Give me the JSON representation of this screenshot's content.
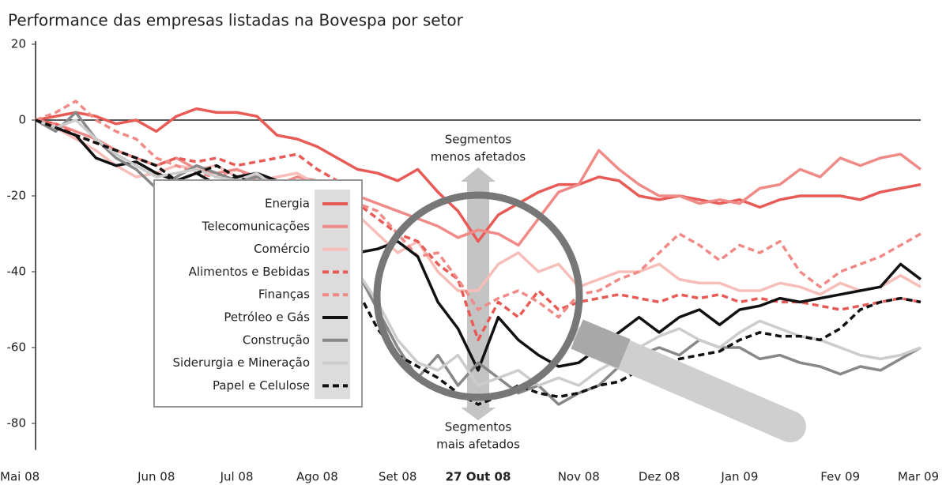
{
  "chart_data": {
    "type": "line",
    "title": "Performance das empresas listadas na Bovespa por setor",
    "categories": [
      "Mai 08",
      null,
      null,
      null,
      null,
      null,
      "Jun 08",
      null,
      null,
      null,
      "Jul 08",
      null,
      null,
      null,
      "Ago 08",
      null,
      null,
      null,
      "Set 08",
      null,
      null,
      null,
      "27 Out 08",
      null,
      null,
      null,
      null,
      "Nov 08",
      null,
      null,
      null,
      "Dez 08",
      null,
      null,
      null,
      "Jan 09",
      null,
      null,
      null,
      null,
      "Fev 09",
      null,
      null,
      null,
      "Mar 09"
    ],
    "marker_category": "27 Out 08",
    "ylim": [
      -87,
      20
    ],
    "yticks": [
      20,
      0,
      -20,
      -40,
      -60,
      -80
    ],
    "zero_line": true,
    "annotations": [
      [
        "Segmentos",
        "menos afetados"
      ],
      [
        "Segmentos",
        "mais afetados"
      ]
    ],
    "series": [
      {
        "name": "Energia",
        "color": "#e85a55",
        "dashed": false,
        "values": [
          0,
          1,
          2,
          1,
          -1,
          0,
          -3,
          1,
          3,
          2,
          2,
          1,
          -4,
          -5,
          -7,
          -10,
          -13,
          -14,
          -16,
          -13,
          -19,
          -24,
          -32,
          -25,
          -22,
          -19,
          -17,
          -17,
          -15,
          -16,
          -20,
          -21,
          -20,
          -21,
          -22,
          -21,
          -23,
          -21,
          -20,
          -20,
          -20,
          -21,
          -19,
          -18,
          -17
        ]
      },
      {
        "name": "Telecomunicações",
        "color": "#ef8a86",
        "dashed": false,
        "values": [
          0,
          -1,
          -3,
          -5,
          -8,
          -10,
          -12,
          -10,
          -13,
          -14,
          -13,
          -15,
          -17,
          -15,
          -16,
          -18,
          -20,
          -22,
          -24,
          -26,
          -28,
          -31,
          -29,
          -30,
          -33,
          -26,
          -19,
          -17,
          -8,
          -13,
          -17,
          -20,
          -20,
          -22,
          -21,
          -22,
          -18,
          -17,
          -13,
          -15,
          -10,
          -12,
          -10,
          -9,
          -13
        ]
      },
      {
        "name": "Comércio",
        "color": "#f7bdb9",
        "dashed": false,
        "values": [
          0,
          -2,
          -5,
          -8,
          -12,
          -15,
          -14,
          -12,
          -13,
          -12,
          -15,
          -16,
          -15,
          -14,
          -17,
          -20,
          -25,
          -30,
          -35,
          -32,
          -40,
          -45,
          -45,
          -38,
          -35,
          -40,
          -38,
          -44,
          -42,
          -40,
          -40,
          -38,
          -42,
          -43,
          -43,
          -45,
          -45,
          -43,
          -44,
          -46,
          -43,
          -45,
          -44,
          -41,
          -44
        ]
      },
      {
        "name": "Alimentos e Bebidas",
        "color": "#e85a55",
        "dashed": true,
        "values": [
          0,
          -1,
          -4,
          -6,
          -8,
          -10,
          -12,
          -10,
          -11,
          -10,
          -12,
          -11,
          -10,
          -9,
          -13,
          -16,
          -22,
          -26,
          -30,
          -32,
          -38,
          -42,
          -58,
          -48,
          -52,
          -45,
          -50,
          -48,
          -47,
          -46,
          -47,
          -48,
          -46,
          -47,
          -46,
          -48,
          -47,
          -48,
          -48,
          -49,
          -50,
          -49,
          -48,
          -47,
          -48
        ]
      },
      {
        "name": "Finanças",
        "color": "#ef8a86",
        "dashed": true,
        "values": [
          0,
          2,
          5,
          0,
          -3,
          -5,
          -10,
          -12,
          -14,
          -15,
          -13,
          -16,
          -18,
          -20,
          -17,
          -18,
          -22,
          -24,
          -30,
          -36,
          -35,
          -42,
          -50,
          -47,
          -45,
          -48,
          -52,
          -46,
          -45,
          -42,
          -40,
          -35,
          -30,
          -33,
          -37,
          -33,
          -35,
          -32,
          -40,
          -44,
          -40,
          -38,
          -36,
          -33,
          -30
        ]
      },
      {
        "name": "Petróleo e Gás",
        "color": "#111111",
        "dashed": false,
        "values": [
          0,
          -2,
          -4,
          -10,
          -12,
          -11,
          -14,
          -16,
          -14,
          -17,
          -15,
          -14,
          -16,
          -18,
          -22,
          -30,
          -35,
          -34,
          -32,
          -36,
          -48,
          -55,
          -66,
          -52,
          -58,
          -62,
          -65,
          -64,
          -60,
          -56,
          -52,
          -56,
          -52,
          -50,
          -54,
          -50,
          -49,
          -47,
          -48,
          -47,
          -46,
          -45,
          -44,
          -38,
          -42
        ]
      },
      {
        "name": "Construção",
        "color": "#888888",
        "dashed": false,
        "values": [
          0,
          -3,
          2,
          -5,
          -10,
          -13,
          -18,
          -15,
          -12,
          -14,
          -16,
          -15,
          -17,
          -22,
          -25,
          -33,
          -40,
          -50,
          -60,
          -68,
          -62,
          -70,
          -64,
          -68,
          -72,
          -70,
          -75,
          -72,
          -70,
          -65,
          -62,
          -60,
          -62,
          -58,
          -60,
          -60,
          -63,
          -62,
          -64,
          -65,
          -67,
          -65,
          -66,
          -63,
          -60
        ]
      },
      {
        "name": "Siderurgia e Mineração",
        "color": "#cccccc",
        "dashed": false,
        "values": [
          0,
          -2,
          0,
          -5,
          -9,
          -12,
          -15,
          -14,
          -13,
          -15,
          -16,
          -14,
          -18,
          -20,
          -25,
          -30,
          -40,
          -48,
          -58,
          -64,
          -66,
          -62,
          -70,
          -68,
          -66,
          -70,
          -68,
          -70,
          -66,
          -63,
          -60,
          -57,
          -55,
          -58,
          -60,
          -56,
          -53,
          -55,
          -57,
          -58,
          -60,
          -62,
          -63,
          -62,
          -60
        ]
      },
      {
        "name": "Papel e Celulose",
        "color": "#111111",
        "dashed": true,
        "values": [
          0,
          -2,
          -4,
          -6,
          -8,
          -10,
          -12,
          -16,
          -14,
          -12,
          -15,
          -17,
          -18,
          -20,
          -25,
          -35,
          -45,
          -55,
          -62,
          -65,
          -68,
          -72,
          -75,
          -73,
          -70,
          -72,
          -73,
          -72,
          -70,
          -69,
          -66,
          -65,
          -63,
          -62,
          -61,
          -58,
          -56,
          -57,
          -57,
          -58,
          -55,
          -50,
          -48,
          -47,
          -48
        ]
      }
    ]
  }
}
